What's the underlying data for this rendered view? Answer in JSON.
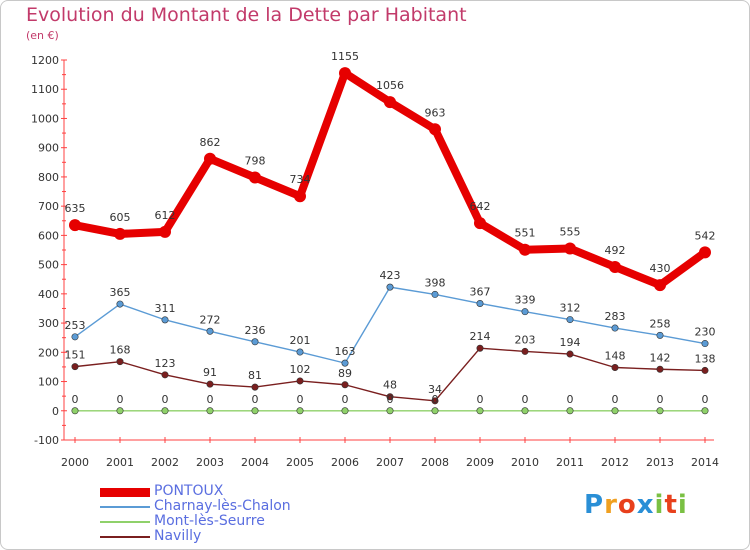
{
  "title": "Evolution du Montant de la Dette par Habitant",
  "unit": "(en €)",
  "brand": "Proxiti",
  "chart_data": {
    "type": "line",
    "x": [
      "2000",
      "2001",
      "2002",
      "2003",
      "2004",
      "2005",
      "2006",
      "2007",
      "2008",
      "2009",
      "2010",
      "2011",
      "2012",
      "2013",
      "2014"
    ],
    "ylim": [
      -100,
      1200
    ],
    "yticks": [
      -100,
      0,
      100,
      200,
      300,
      400,
      500,
      600,
      700,
      800,
      900,
      1000,
      1100,
      1200
    ],
    "grid": "none",
    "legend_position": "bottom-left",
    "series": [
      {
        "name": "PONTOUX",
        "color": "#e60000",
        "values": [
          635,
          605,
          612,
          862,
          798,
          734,
          1155,
          1056,
          963,
          642,
          551,
          555,
          492,
          430,
          542
        ]
      },
      {
        "name": "Charnay-lès-Chalon",
        "color": "#5b9bd5",
        "values": [
          253,
          365,
          311,
          272,
          236,
          201,
          163,
          423,
          398,
          367,
          339,
          312,
          283,
          258,
          230
        ]
      },
      {
        "name": "Mont-lès-Seurre",
        "color": "#8fd16a",
        "values": [
          0,
          0,
          0,
          0,
          0,
          0,
          0,
          0,
          0,
          0,
          0,
          0,
          0,
          0,
          0
        ]
      },
      {
        "name": "Navilly",
        "color": "#7a1f1f",
        "values": [
          151,
          168,
          123,
          91,
          81,
          102,
          89,
          48,
          34,
          214,
          203,
          194,
          148,
          142,
          138
        ]
      }
    ]
  }
}
